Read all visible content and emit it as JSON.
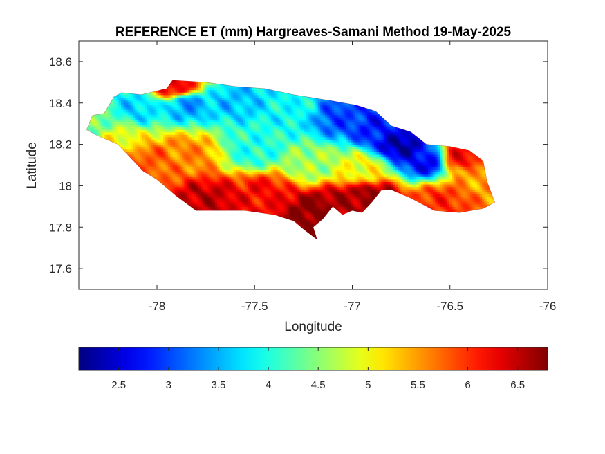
{
  "chart_data": {
    "type": "heatmap",
    "title": "REFERENCE ET (mm) Hargreaves-Samani Method  19-May-2025",
    "xlabel": "Longitude",
    "ylabel": "Latitude",
    "xlim": [
      -78.4,
      -76.0
    ],
    "ylim": [
      17.5,
      18.7
    ],
    "xticks": [
      -78,
      -77.5,
      -77,
      -76.5,
      -76
    ],
    "xtick_labels": [
      "-78",
      "-77.5",
      "-77",
      "-76.5",
      "-76"
    ],
    "yticks": [
      17.6,
      17.8,
      18.0,
      18.2,
      18.4,
      18.6
    ],
    "ytick_labels": [
      "17.6",
      "17.8",
      "18",
      "18.2",
      "18.4",
      "18.6"
    ],
    "grid": false,
    "colormap": "jet",
    "colorbar": {
      "location": "bottom",
      "range": [
        2.1,
        6.8
      ],
      "ticks": [
        2.5,
        3,
        3.5,
        4,
        4.5,
        5,
        5.5,
        6,
        6.5
      ],
      "tick_labels": [
        "2.5",
        "3",
        "3.5",
        "4",
        "4.5",
        "5",
        "5.5",
        "6",
        "6.5"
      ]
    },
    "region_outline": [
      [
        -78.36,
        18.27
      ],
      [
        -78.33,
        18.34
      ],
      [
        -78.27,
        18.35
      ],
      [
        -78.22,
        18.43
      ],
      [
        -78.18,
        18.45
      ],
      [
        -78.08,
        18.44
      ],
      [
        -77.95,
        18.47
      ],
      [
        -77.92,
        18.51
      ],
      [
        -77.75,
        18.5
      ],
      [
        -77.6,
        18.48
      ],
      [
        -77.45,
        18.47
      ],
      [
        -77.3,
        18.44
      ],
      [
        -77.1,
        18.41
      ],
      [
        -76.98,
        18.39
      ],
      [
        -76.88,
        18.36
      ],
      [
        -76.8,
        18.29
      ],
      [
        -76.7,
        18.26
      ],
      [
        -76.62,
        18.2
      ],
      [
        -76.5,
        18.19
      ],
      [
        -76.4,
        18.17
      ],
      [
        -76.33,
        18.12
      ],
      [
        -76.31,
        18.02
      ],
      [
        -76.27,
        17.92
      ],
      [
        -76.33,
        17.89
      ],
      [
        -76.45,
        17.87
      ],
      [
        -76.58,
        17.88
      ],
      [
        -76.7,
        17.94
      ],
      [
        -76.8,
        17.98
      ],
      [
        -76.85,
        17.98
      ],
      [
        -76.9,
        17.92
      ],
      [
        -76.95,
        17.87
      ],
      [
        -77.0,
        17.88
      ],
      [
        -77.05,
        17.86
      ],
      [
        -77.1,
        17.9
      ],
      [
        -77.15,
        17.84
      ],
      [
        -77.2,
        17.8
      ],
      [
        -77.18,
        17.74
      ],
      [
        -77.25,
        17.79
      ],
      [
        -77.3,
        17.83
      ],
      [
        -77.4,
        17.86
      ],
      [
        -77.55,
        17.88
      ],
      [
        -77.7,
        17.88
      ],
      [
        -77.8,
        17.88
      ],
      [
        -77.9,
        17.95
      ],
      [
        -78.0,
        18.03
      ],
      [
        -78.07,
        18.07
      ],
      [
        -78.12,
        18.12
      ],
      [
        -78.2,
        18.2
      ],
      [
        -78.3,
        18.24
      ]
    ],
    "field_sources": [
      {
        "lon": -78.3,
        "lat": 18.3,
        "value": 4.4
      },
      {
        "lon": -78.1,
        "lat": 18.38,
        "value": 3.7
      },
      {
        "lon": -77.85,
        "lat": 18.4,
        "value": 3.4
      },
      {
        "lon": -77.6,
        "lat": 18.42,
        "value": 3.6
      },
      {
        "lon": -77.3,
        "lat": 18.38,
        "value": 3.9
      },
      {
        "lon": -77.05,
        "lat": 18.34,
        "value": 3.0
      },
      {
        "lon": -76.85,
        "lat": 18.28,
        "value": 2.8
      },
      {
        "lon": -76.75,
        "lat": 18.2,
        "value": 2.3
      },
      {
        "lon": -76.62,
        "lat": 18.12,
        "value": 2.7
      },
      {
        "lon": -76.45,
        "lat": 18.14,
        "value": 6.2
      },
      {
        "lon": -76.35,
        "lat": 18.05,
        "value": 5.5
      },
      {
        "lon": -76.55,
        "lat": 17.93,
        "value": 6.0
      },
      {
        "lon": -76.9,
        "lat": 17.95,
        "value": 6.7
      },
      {
        "lon": -77.05,
        "lat": 17.92,
        "value": 6.6
      },
      {
        "lon": -77.2,
        "lat": 17.88,
        "value": 6.8
      },
      {
        "lon": -77.45,
        "lat": 17.96,
        "value": 6.2
      },
      {
        "lon": -77.75,
        "lat": 17.93,
        "value": 6.5
      },
      {
        "lon": -78.05,
        "lat": 18.12,
        "value": 5.8
      },
      {
        "lon": -77.85,
        "lat": 18.15,
        "value": 5.6
      },
      {
        "lon": -77.5,
        "lat": 18.18,
        "value": 4.0
      },
      {
        "lon": -77.2,
        "lat": 18.1,
        "value": 4.6
      },
      {
        "lon": -76.95,
        "lat": 18.08,
        "value": 5.0
      },
      {
        "lon": -77.9,
        "lat": 18.48,
        "value": 6.3
      },
      {
        "lon": -78.2,
        "lat": 18.22,
        "value": 5.0
      }
    ]
  }
}
